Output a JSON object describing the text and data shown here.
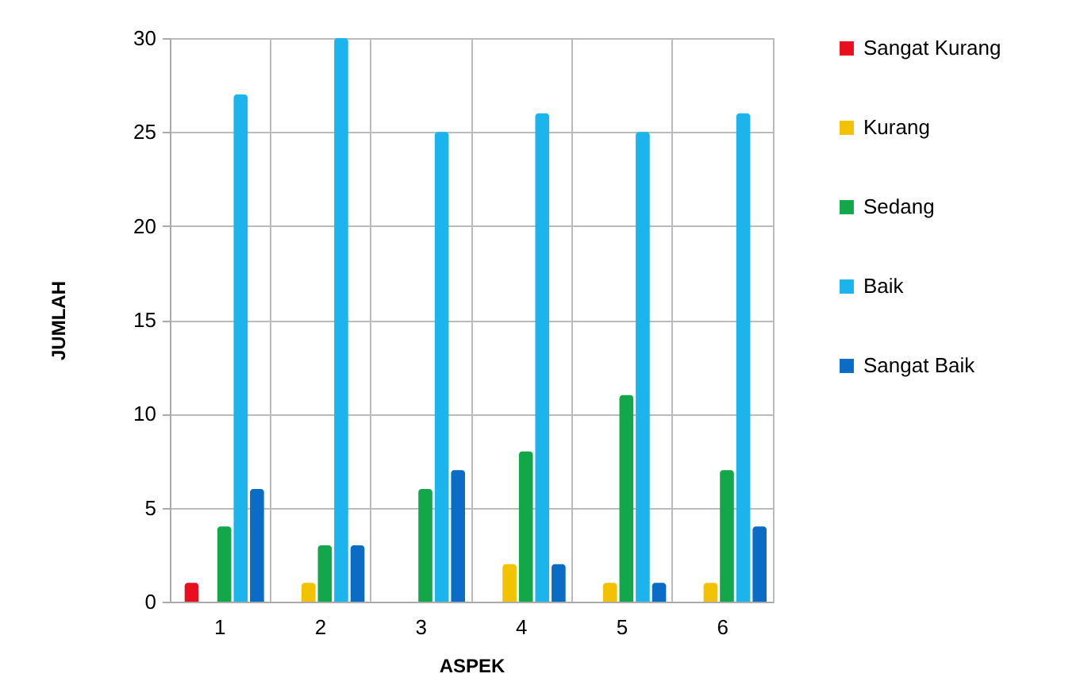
{
  "chart_data": {
    "type": "bar",
    "xlabel": "ASPEK",
    "ylabel": "JUMLAH",
    "categories": [
      "1",
      "2",
      "3",
      "4",
      "5",
      "6"
    ],
    "series": [
      {
        "name": "Sangat Kurang",
        "color": "#e8101e",
        "values": [
          1,
          0,
          0,
          0,
          0,
          0
        ]
      },
      {
        "name": "Kurang",
        "color": "#f2c200",
        "values": [
          0,
          1,
          0,
          2,
          1,
          1
        ]
      },
      {
        "name": "Sedang",
        "color": "#12a84a",
        "values": [
          4,
          3,
          6,
          8,
          11,
          7
        ]
      },
      {
        "name": "Baik",
        "color": "#1cb4ec",
        "values": [
          27,
          30,
          25,
          26,
          25,
          26
        ]
      },
      {
        "name": "Sangat Baik",
        "color": "#0a6cc4",
        "values": [
          6,
          3,
          7,
          2,
          1,
          4
        ]
      }
    ],
    "ylim": [
      0,
      30
    ],
    "yticks": [
      0,
      5,
      10,
      15,
      20,
      25,
      30
    ],
    "grid": true,
    "legend": "right"
  }
}
